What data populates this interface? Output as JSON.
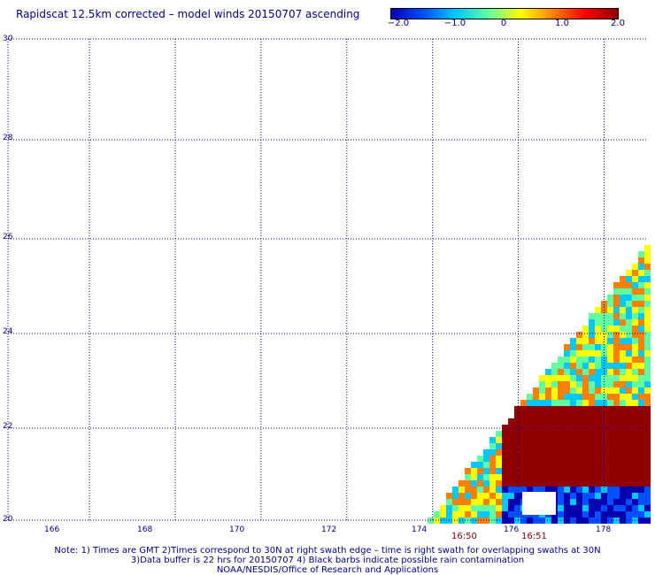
{
  "title": "Rapidscat 12.5km corrected – model winds 20150707 ascending",
  "colorbar": {
    "labels": [
      "−2.0",
      "−1.0",
      "0",
      "1.0",
      "2.0"
    ],
    "colors": [
      "#0000b0",
      "#0050ff",
      "#00c8ff",
      "#60ffa0",
      "#ffff00",
      "#ff8000",
      "#ff0000",
      "#900000"
    ]
  },
  "map": {
    "lat_labels": [
      "30",
      "28",
      "26",
      "24",
      "22",
      "20"
    ],
    "lon_labels": [
      "166",
      "168",
      "170",
      "172",
      "174",
      "176",
      "178"
    ],
    "grid_color": "#000080",
    "lon_range": [
      164.1,
      179.0
    ],
    "lat_range": [
      20.0,
      30.0
    ]
  },
  "swath_times": [
    "16:50",
    "16:51"
  ],
  "notes": [
    "Note: 1) Times are GMT 2)Times correspond to 30N at right swath edge – time is right swath for overlapping swaths at 30N",
    "3)Data buffer is 22 hrs for 20150707 4) Black barbs indicate possible rain contamination",
    "NOAA/NESDIS/Office of Research and Applications"
  ]
}
